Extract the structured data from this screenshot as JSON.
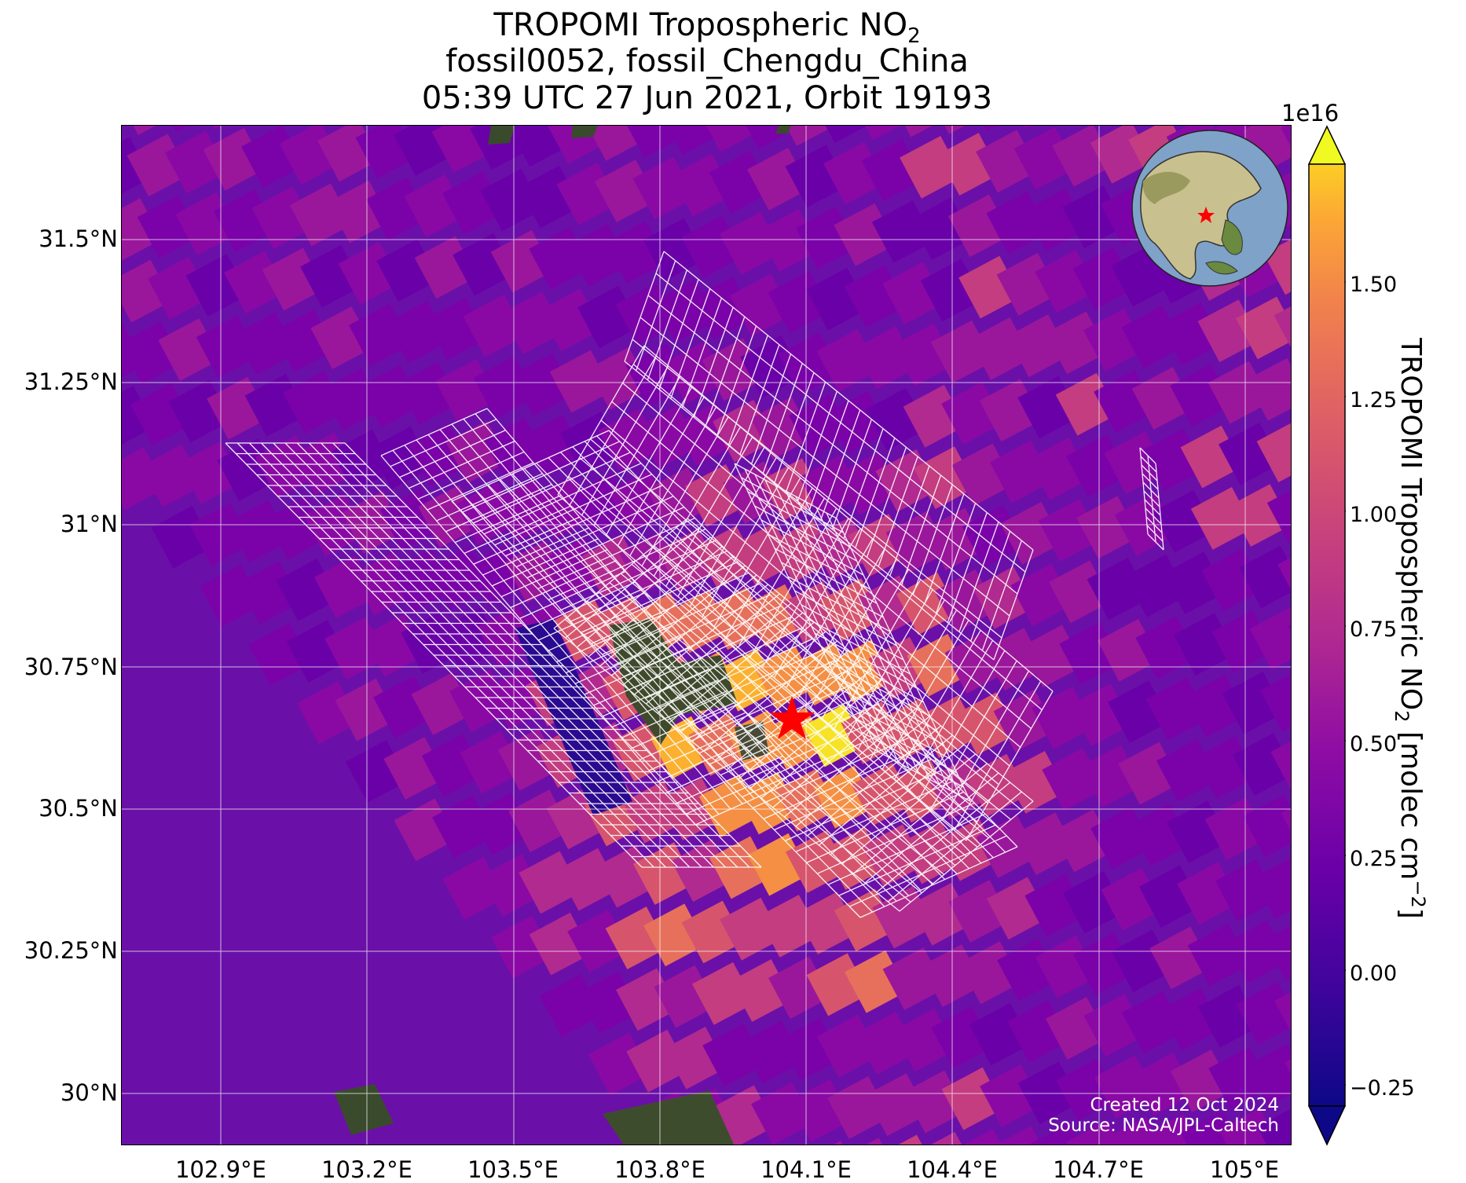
{
  "title": {
    "line1": "TROPOMI Tropospheric NO",
    "line1_sub": "2",
    "line2": "fossil0052, fossil_Chengdu_China",
    "line3": "05:39 UTC 27 Jun 2021, Orbit 19193"
  },
  "map": {
    "lon_ticks": [
      "102.9°E",
      "103.2°E",
      "103.5°E",
      "103.8°E",
      "104.1°E",
      "104.4°E",
      "104.7°E",
      "105°E"
    ],
    "lat_ticks": [
      "31.5°N",
      "31.25°N",
      "31°N",
      "30.75°N",
      "30.5°N",
      "30.25°N",
      "30°N"
    ],
    "lon_range": [
      102.7,
      105.1
    ],
    "lat_range": [
      29.9,
      31.7
    ],
    "background_color": "#6a10a8",
    "gridlines": true,
    "target_marker": {
      "symbol": "red-star",
      "lon": 104.07,
      "lat": 30.67,
      "color": "#ff0000"
    },
    "inset": "globe-locator-asia"
  },
  "colorbar": {
    "exponent": "1e16",
    "ticks": [
      "1.50",
      "1.25",
      "1.00",
      "0.75",
      "0.50",
      "0.25",
      "0.00",
      "−0.25"
    ],
    "tick_values": [
      1.5,
      1.25,
      1.0,
      0.75,
      0.5,
      0.25,
      0.0,
      -0.25
    ],
    "range": [
      -0.25,
      1.75
    ],
    "label": "TROPOMI Tropospheric NO",
    "label_sub": "2",
    "label_unit": " [molec cm",
    "label_sup": "−2",
    "label_end": "]",
    "colormap": "plasma"
  },
  "credit": {
    "created": "Created 12 Oct 2024",
    "source": "Source: NASA/JPL-Caltech"
  }
}
